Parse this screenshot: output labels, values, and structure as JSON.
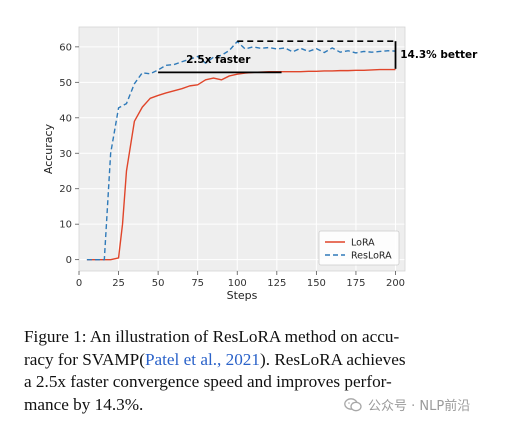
{
  "chart_data": {
    "type": "line",
    "ylabel": "Accuracy",
    "xlabel": "Steps",
    "xlim": [
      0,
      206
    ],
    "ylim": [
      -3.2,
      65.6
    ],
    "xticks": [
      0,
      25,
      50,
      75,
      100,
      125,
      150,
      175,
      200
    ],
    "yticks": [
      0,
      10,
      20,
      30,
      40,
      50,
      60
    ],
    "grid": true,
    "legend": "lower-right",
    "series": [
      {
        "name": "LoRA",
        "color": "#e0452a",
        "style": "solid",
        "points": [
          [
            5,
            0
          ],
          [
            10,
            0
          ],
          [
            15,
            0
          ],
          [
            20,
            0
          ],
          [
            25,
            0.5
          ],
          [
            27.5,
            10
          ],
          [
            30,
            25
          ],
          [
            35,
            39
          ],
          [
            40,
            43
          ],
          [
            45,
            45.5
          ],
          [
            50,
            46.3
          ],
          [
            55,
            47
          ],
          [
            60,
            47.6
          ],
          [
            65,
            48.2
          ],
          [
            70,
            49
          ],
          [
            75,
            49.3
          ],
          [
            80,
            50.7
          ],
          [
            85,
            51.2
          ],
          [
            90,
            50.7
          ],
          [
            95,
            51.8
          ],
          [
            100,
            52.3
          ],
          [
            105,
            52.6
          ],
          [
            110,
            52.8
          ],
          [
            115,
            52.9
          ],
          [
            120,
            53
          ],
          [
            125,
            53
          ],
          [
            130,
            53
          ],
          [
            135,
            53
          ],
          [
            140,
            53
          ],
          [
            145,
            53.1
          ],
          [
            150,
            53.1
          ],
          [
            155,
            53.2
          ],
          [
            160,
            53.2
          ],
          [
            165,
            53.3
          ],
          [
            170,
            53.3
          ],
          [
            175,
            53.4
          ],
          [
            180,
            53.4
          ],
          [
            185,
            53.5
          ],
          [
            190,
            53.6
          ],
          [
            195,
            53.6
          ],
          [
            200,
            53.6
          ]
        ]
      },
      {
        "name": "ResLoRA",
        "color": "#2f7ab9",
        "style": "dashed",
        "points": [
          [
            5,
            0
          ],
          [
            10,
            0
          ],
          [
            16,
            0
          ],
          [
            20,
            30
          ],
          [
            25,
            42.8
          ],
          [
            30,
            44
          ],
          [
            35,
            49.6
          ],
          [
            40,
            52.7
          ],
          [
            45,
            52.4
          ],
          [
            50,
            53.5
          ],
          [
            55,
            54.8
          ],
          [
            60,
            55
          ],
          [
            65,
            55.8
          ],
          [
            70,
            56.5
          ],
          [
            75,
            57.3
          ],
          [
            80,
            55.4
          ],
          [
            85,
            57.1
          ],
          [
            90,
            57.6
          ],
          [
            95,
            59
          ],
          [
            100,
            61.5
          ],
          [
            105,
            59.4
          ],
          [
            110,
            60
          ],
          [
            115,
            59.6
          ],
          [
            120,
            59.8
          ],
          [
            125,
            59.4
          ],
          [
            130,
            59.7
          ],
          [
            135,
            58.6
          ],
          [
            140,
            59.6
          ],
          [
            145,
            58.7
          ],
          [
            150,
            59.5
          ],
          [
            155,
            58.4
          ],
          [
            160,
            59.7
          ],
          [
            165,
            58.5
          ],
          [
            170,
            58.9
          ],
          [
            175,
            58.3
          ],
          [
            180,
            58.7
          ],
          [
            185,
            58.5
          ],
          [
            190,
            58.7
          ],
          [
            195,
            58.9
          ],
          [
            200,
            58.8
          ]
        ]
      }
    ],
    "annotations": [
      {
        "text": "2.5x faster",
        "line": {
          "x": [
            50,
            128
          ],
          "y": [
            52.8,
            52.8
          ],
          "style": "solid",
          "color": "#000000"
        },
        "anchor": [
          88,
          55.5
        ]
      },
      {
        "text": "14.3% better",
        "hline_dashed": {
          "x": [
            100,
            200
          ],
          "y": 61.6,
          "color": "#000000"
        },
        "vline": {
          "x": 200,
          "y": [
            53.8,
            61.6
          ],
          "color": "#000000"
        },
        "anchor": [
          203,
          57.8
        ]
      }
    ]
  },
  "caption": {
    "prefix": "Figure 1:  An illustration of ResLoRA method on accu-",
    "line2_start": "racy for SVAMP(",
    "line2_cite": "Patel et al., 2021",
    "line2_end": "). ResLoRA achieves",
    "line3": "a 2.5x faster convergence speed and improves perfor-",
    "line4": "mance by 14.3%."
  },
  "watermark": {
    "text": "公众号 · NLP前沿",
    "icon": "wechat-icon"
  }
}
